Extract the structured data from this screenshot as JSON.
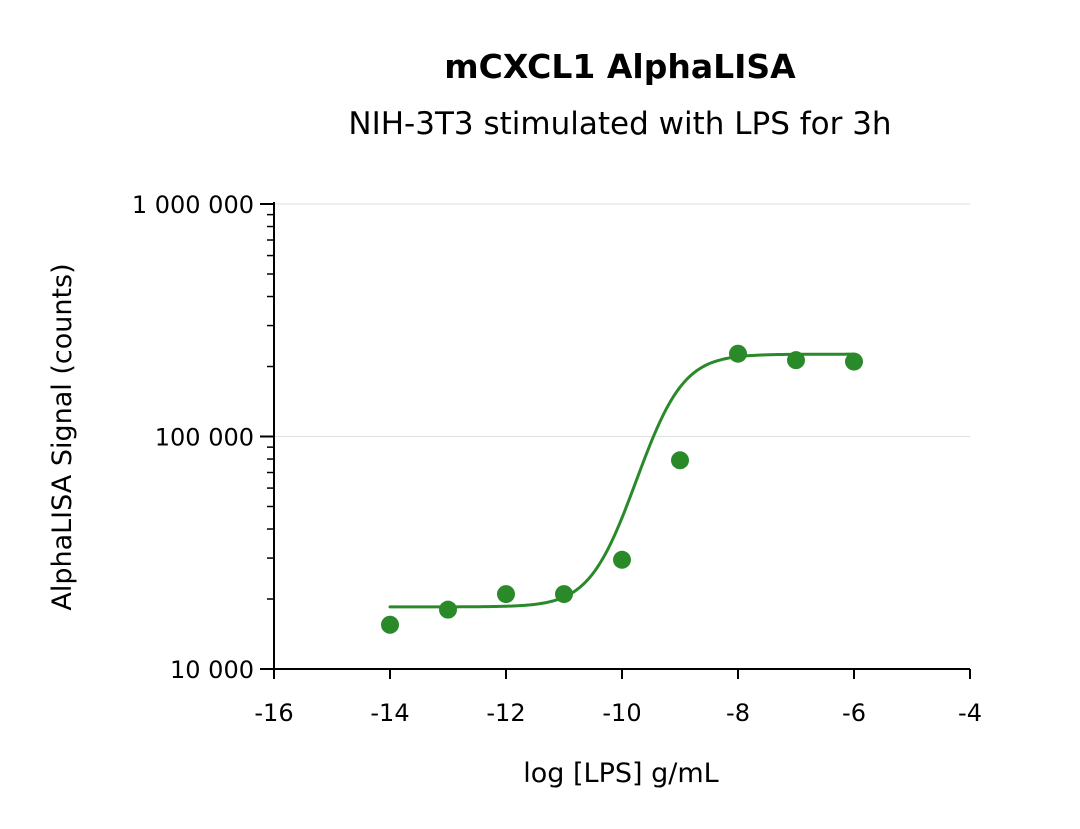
{
  "chart_data": {
    "type": "scatter",
    "title": "mCXCL1 AlphaLISA",
    "subtitle": "NIH-3T3 stimulated with LPS for 3h",
    "xlabel": "log [LPS] g/mL",
    "ylabel": "AlphaLISA Signal (counts)",
    "xlim": [
      -16,
      -4
    ],
    "ylim": [
      10000,
      1000000
    ],
    "yscale": "log",
    "x_ticks": [
      -16,
      -14,
      -12,
      -10,
      -8,
      -6,
      -4
    ],
    "x_tick_labels": [
      "-16",
      "-14",
      "-12",
      "-10",
      "-8",
      "-6",
      "-4"
    ],
    "y_ticks": [
      10000,
      100000,
      1000000
    ],
    "y_tick_labels": [
      "10 000",
      "100 000",
      "1 000 000"
    ],
    "grid": "horizontal major lines",
    "legend": "none",
    "color": "#2a8a2a",
    "series": [
      {
        "kind": "points",
        "x": [
          -14,
          -13,
          -12,
          -11,
          -10,
          -9,
          -8,
          -7,
          -6
        ],
        "y": [
          15500,
          18000,
          21000,
          21000,
          29500,
          79000,
          227000,
          213000,
          210000
        ]
      },
      {
        "kind": "fit-curve",
        "model": "4-parameter logistic",
        "x_range": [
          -14,
          -6
        ],
        "bottom": 18500,
        "top": 226000,
        "log_ec50": -9.3,
        "hill_slope": 1.2
      }
    ]
  }
}
